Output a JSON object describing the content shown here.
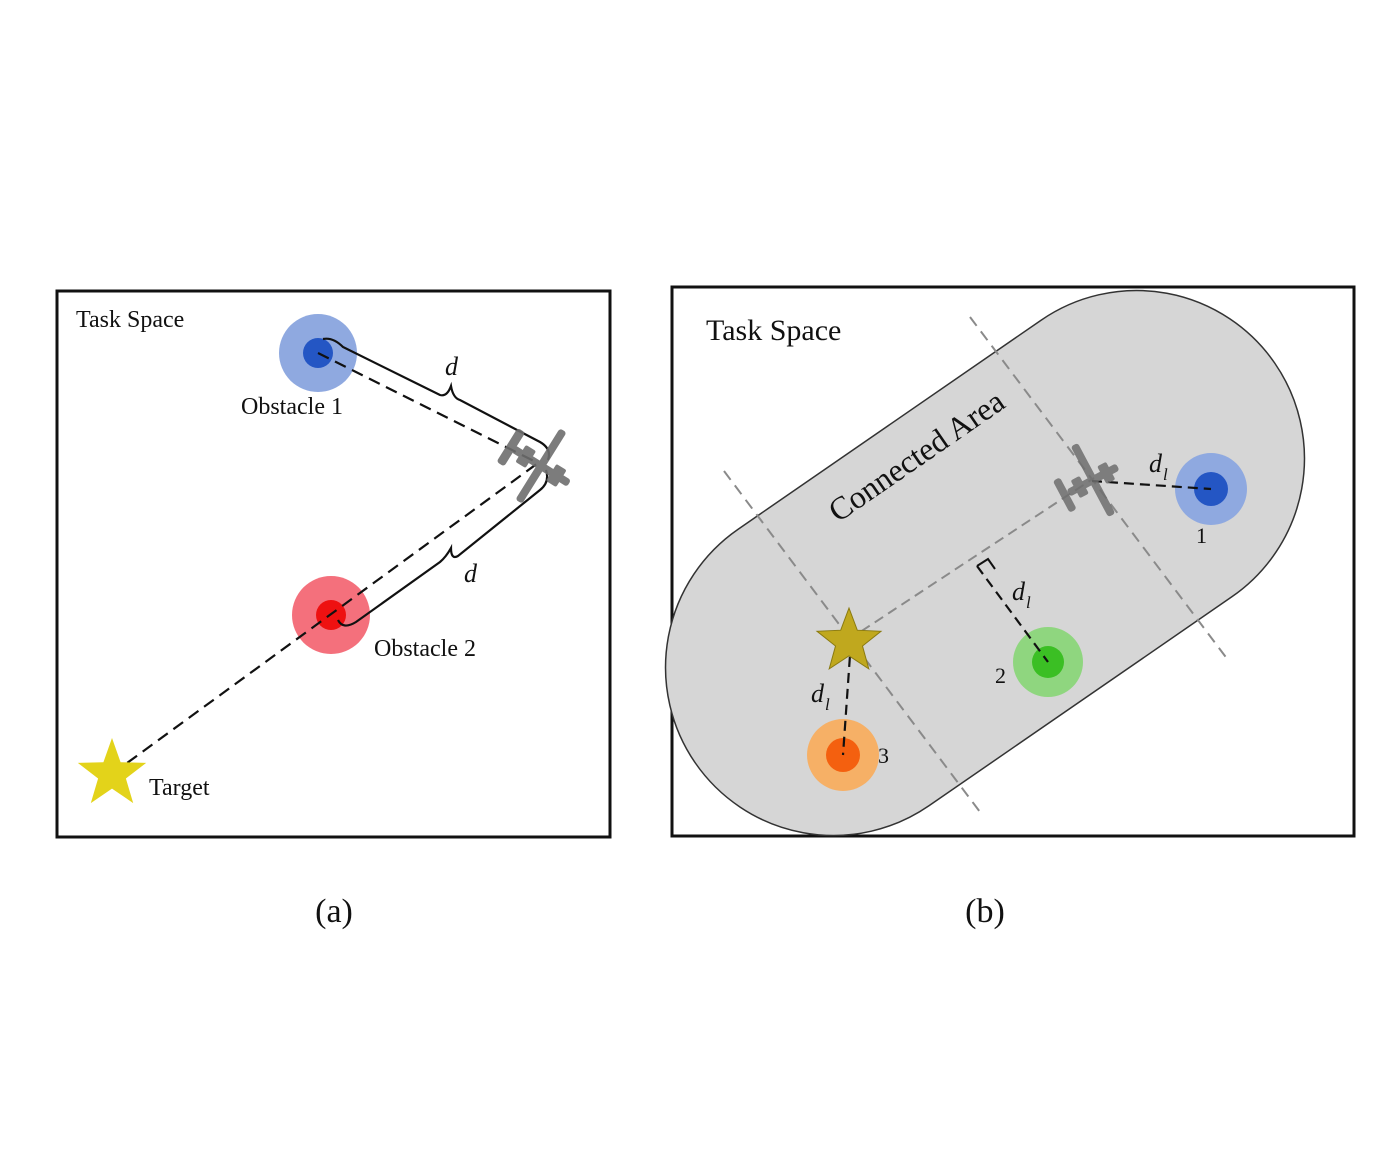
{
  "panel_a": {
    "task_space": "Task Space",
    "obstacle_1": "Obstacle 1",
    "obstacle_2": "Obstacle 2",
    "target": "Target",
    "distance_1": "d",
    "distance_2": "d",
    "caption": "(a)"
  },
  "panel_b": {
    "task_space": "Task Space",
    "connected_area": "Connected Area",
    "obstacle_1": "1",
    "obstacle_2": "2",
    "obstacle_3": "3",
    "distance_1": "d",
    "distance_1_sub": "l",
    "distance_2": "d",
    "distance_2_sub": "l",
    "distance_3": "d",
    "distance_3_sub": "l",
    "caption": "(b)"
  },
  "colors": {
    "obstacle_blue_outer": "#8fa9e0",
    "obstacle_blue_inner": "#2456c4",
    "obstacle_red_outer": "#f4707c",
    "obstacle_red_inner": "#ee1111",
    "obstacle_green_outer": "#8fd67f",
    "obstacle_green_inner": "#3bbf24",
    "obstacle_orange_outer": "#f6b066",
    "obstacle_orange_inner": "#f4600f",
    "target_a": "#e3d31a",
    "target_b": "#c0a81e",
    "connected_area": "#d6d6d6",
    "uav": "#6e6e6e"
  }
}
